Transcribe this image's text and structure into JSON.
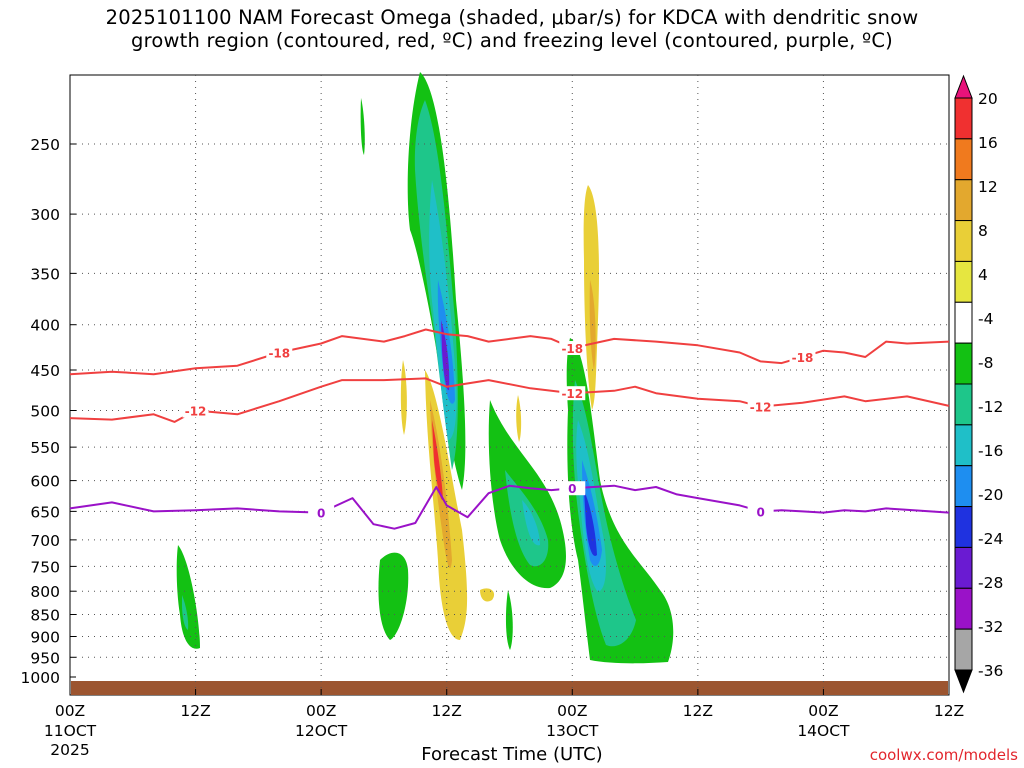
{
  "title_line1": "2025101100 NAM Forecast Omega (shaded, μbar/s) for KDCA with dendritic snow",
  "title_line2": "growth region (contoured, red, ºC) and freezing level (contoured, purple, ºC)",
  "xlabel": "Forecast Time (UTC)",
  "credit": "coolwx.com/models",
  "chart_data": {
    "type": "heatmap",
    "title": "2025101100 NAM Forecast Omega (shaded, μbar/s) for KDCA with dendritic snow growth region (contoured, red, ºC) and freezing level (contoured, purple, ºC)",
    "xlabel": "Forecast Time (UTC)",
    "ylabel": "",
    "x_range_hours": [
      0,
      84
    ],
    "y_range_hpa": [
      1000,
      200
    ],
    "y_scale": "log-pressure",
    "grid": true,
    "x_ticks": [
      {
        "hour": 0,
        "label": "00Z",
        "sub": "11OCT",
        "sub2": "2025"
      },
      {
        "hour": 12,
        "label": "12Z",
        "sub": "",
        "sub2": ""
      },
      {
        "hour": 24,
        "label": "00Z",
        "sub": "12OCT",
        "sub2": ""
      },
      {
        "hour": 36,
        "label": "12Z",
        "sub": "",
        "sub2": ""
      },
      {
        "hour": 48,
        "label": "00Z",
        "sub": "13OCT",
        "sub2": ""
      },
      {
        "hour": 60,
        "label": "12Z",
        "sub": "",
        "sub2": ""
      },
      {
        "hour": 72,
        "label": "00Z",
        "sub": "14OCT",
        "sub2": ""
      },
      {
        "hour": 84,
        "label": "12Z",
        "sub": "",
        "sub2": ""
      }
    ],
    "y_ticks": [
      250,
      300,
      350,
      400,
      450,
      500,
      550,
      600,
      650,
      700,
      750,
      800,
      850,
      900,
      950,
      1000
    ],
    "colorbar": {
      "labels": [
        "20",
        "16",
        "12",
        "8",
        "4",
        "-4",
        "-8",
        "-12",
        "-16",
        "-20",
        "-24",
        "-28",
        "-32",
        "-36"
      ],
      "colors": [
        "#e8127a",
        "#f03030",
        "#f07a1e",
        "#e3a82e",
        "#e9cf37",
        "#e6e640",
        "#ffffff",
        "#13c113",
        "#1ec68a",
        "#1fbfc8",
        "#1e8ef0",
        "#1f32e0",
        "#6a1bd2",
        "#9a12c8",
        "#a6a6a6",
        "#000000"
      ]
    },
    "omega_regions": [
      {
        "name": "ascent-core-12Z-12OCT",
        "value_min": -28,
        "hours": [
          32.5,
          38
        ],
        "p": [
          210,
          600
        ]
      },
      {
        "name": "ascent-core-00Z-13OCT",
        "value_min": -24,
        "hours": [
          47,
          51
        ],
        "p": [
          420,
          760
        ]
      },
      {
        "name": "descent-12Z-12OCT",
        "value_max": 16,
        "hours": [
          34.5,
          38
        ],
        "p": [
          520,
          900
        ]
      },
      {
        "name": "descent-01Z-13OCT",
        "value_max": 8,
        "hours": [
          48.5,
          50.5
        ],
        "p": [
          270,
          480
        ]
      }
    ],
    "contours": [
      {
        "name": "-18",
        "color": "#f04040",
        "quantity": "temperature ºC",
        "points": [
          [
            0,
            455
          ],
          [
            4,
            452
          ],
          [
            8,
            455
          ],
          [
            12,
            448
          ],
          [
            16,
            445
          ],
          [
            20,
            430
          ],
          [
            24,
            420
          ],
          [
            26,
            412
          ],
          [
            30,
            418
          ],
          [
            32,
            412
          ],
          [
            34,
            405
          ],
          [
            36,
            410
          ],
          [
            38,
            412
          ],
          [
            40,
            418
          ],
          [
            42,
            415
          ],
          [
            44,
            412
          ],
          [
            46,
            415
          ],
          [
            48,
            425
          ],
          [
            52,
            415
          ],
          [
            56,
            418
          ],
          [
            60,
            422
          ],
          [
            64,
            430
          ],
          [
            66,
            440
          ],
          [
            68,
            442
          ],
          [
            70,
            435
          ],
          [
            72,
            428
          ],
          [
            74,
            430
          ],
          [
            76,
            435
          ],
          [
            78,
            418
          ],
          [
            80,
            420
          ],
          [
            84,
            418
          ]
        ]
      },
      {
        "name": "-12",
        "color": "#f04040",
        "quantity": "temperature ºC",
        "points": [
          [
            0,
            510
          ],
          [
            4,
            512
          ],
          [
            8,
            505
          ],
          [
            10,
            515
          ],
          [
            12,
            500
          ],
          [
            16,
            505
          ],
          [
            20,
            488
          ],
          [
            24,
            470
          ],
          [
            26,
            462
          ],
          [
            30,
            462
          ],
          [
            34,
            460
          ],
          [
            36,
            470
          ],
          [
            40,
            462
          ],
          [
            44,
            472
          ],
          [
            48,
            478
          ],
          [
            52,
            475
          ],
          [
            54,
            470
          ],
          [
            56,
            478
          ],
          [
            60,
            485
          ],
          [
            64,
            488
          ],
          [
            66,
            495
          ],
          [
            70,
            490
          ],
          [
            74,
            482
          ],
          [
            76,
            488
          ],
          [
            80,
            482
          ],
          [
            84,
            494
          ]
        ]
      },
      {
        "name": "0",
        "color": "#9a12c8",
        "quantity": "temperature ºC",
        "points": [
          [
            0,
            645
          ],
          [
            4,
            635
          ],
          [
            8,
            650
          ],
          [
            12,
            648
          ],
          [
            16,
            645
          ],
          [
            20,
            650
          ],
          [
            24,
            652
          ],
          [
            27,
            628
          ],
          [
            29,
            672
          ],
          [
            31,
            680
          ],
          [
            33,
            670
          ],
          [
            35,
            610
          ],
          [
            36,
            640
          ],
          [
            38,
            660
          ],
          [
            40,
            620
          ],
          [
            42,
            608
          ],
          [
            44,
            612
          ],
          [
            46,
            615
          ],
          [
            48,
            612
          ],
          [
            50,
            610
          ],
          [
            52,
            608
          ],
          [
            54,
            615
          ],
          [
            56,
            610
          ],
          [
            58,
            622
          ],
          [
            60,
            628
          ],
          [
            64,
            640
          ],
          [
            66,
            650
          ],
          [
            68,
            648
          ],
          [
            70,
            650
          ],
          [
            72,
            652
          ],
          [
            74,
            648
          ],
          [
            76,
            650
          ],
          [
            78,
            645
          ],
          [
            84,
            652
          ]
        ]
      }
    ]
  }
}
